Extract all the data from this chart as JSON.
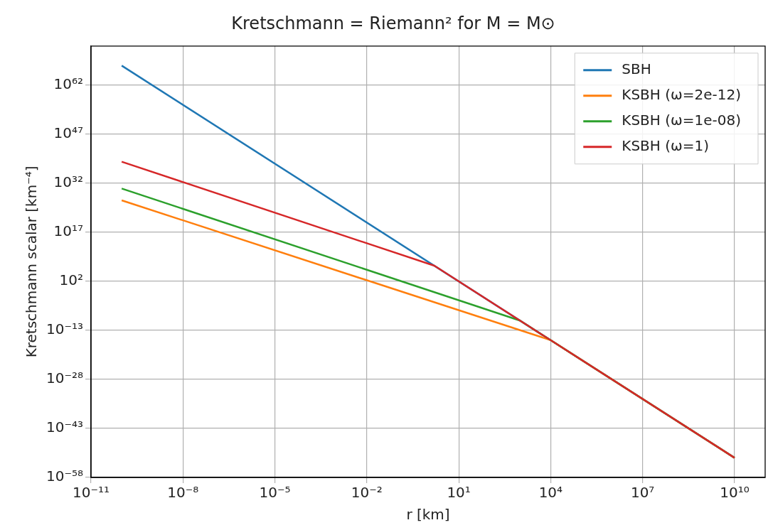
{
  "chart_data": {
    "type": "line",
    "title": "Kretschmann = Riemann² for M = M⊙",
    "xlabel": "r [km]",
    "ylabel": "Kretschmann scalar [km⁻⁴]",
    "log": "xy",
    "grid": true,
    "legend": "top right",
    "marker": "none",
    "line_style": "solid",
    "xlim": [
      1e-11,
      100000000000.0
    ],
    "ylim": [
      1e-58,
      1e+74
    ],
    "xticks": [
      {
        "value": 1e-11,
        "label": "10⁻¹¹"
      },
      {
        "value": 1e-08,
        "label": "10⁻⁸"
      },
      {
        "value": 1e-05,
        "label": "10⁻⁵"
      },
      {
        "value": 0.01,
        "label": "10⁻²"
      },
      {
        "value": 10.0,
        "label": "10¹"
      },
      {
        "value": 10000.0,
        "label": "10⁴"
      },
      {
        "value": 10000000.0,
        "label": "10⁷"
      },
      {
        "value": 10000000000.0,
        "label": "10¹⁰"
      }
    ],
    "yticks": [
      {
        "value": 1e-58,
        "label": "10⁻⁵⁸"
      },
      {
        "value": 1e-43,
        "label": "10⁻⁴³"
      },
      {
        "value": 1e-28,
        "label": "10⁻²⁸"
      },
      {
        "value": 1e-13,
        "label": "10⁻¹³"
      },
      {
        "value": 100.0,
        "label": "10²"
      },
      {
        "value": 1e+17,
        "label": "10¹⁷"
      },
      {
        "value": 1e+32,
        "label": "10³²"
      },
      {
        "value": 1e+47,
        "label": "10⁴⁷"
      },
      {
        "value": 1e+62,
        "label": "10⁶²"
      }
    ],
    "series": [
      {
        "name": "SBH",
        "color": "#1f77b4",
        "x": [
          1e-10,
          10000000000.0
        ],
        "values": [
          1e+68,
          1e-52
        ]
      },
      {
        "name": "KSBH (ω=2e-12)",
        "color": "#ff7f0e",
        "x": [
          1e-10,
          10000.0,
          10000000000.0
        ],
        "values": [
          6e+26,
          1e-16,
          1e-52
        ]
      },
      {
        "name": "KSBH (ω=1e-08)",
        "color": "#2ca02c",
        "x": [
          1e-10,
          1000.0,
          10000000000.0
        ],
        "values": [
          2.5e+30,
          1e-10,
          1e-52
        ]
      },
      {
        "name": "KSBH (ω=1)",
        "color": "#d62728",
        "x": [
          1e-10,
          1.6,
          10000000000.0
        ],
        "values": [
          4e+38,
          6000000.0,
          1e-52
        ]
      }
    ]
  }
}
